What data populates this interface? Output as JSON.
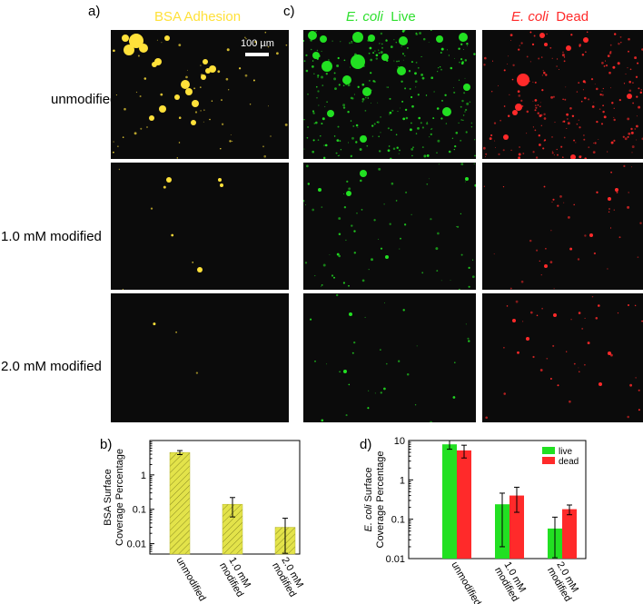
{
  "panel_labels": {
    "a": "a)",
    "b": "b)",
    "c": "c)",
    "d": "d)"
  },
  "micrograph_titles": {
    "bsa": "BSA Adhesion",
    "live_italic": "E. coli",
    "live_word": "Live",
    "dead_italic": "E. coli",
    "dead_word": "Dead"
  },
  "row_labels": [
    "unmodified",
    "1.0 mM modified",
    "2.0 mM modified"
  ],
  "scale_bar_label": "100 µm",
  "colors": {
    "bsa": "#ffe13a",
    "bsa_bar": "#e3e34a",
    "live": "#22e022",
    "dead": "#ff2a2a",
    "background": "#0b0b0b"
  },
  "chart_data": [
    {
      "id": "b",
      "type": "bar",
      "categories": [
        "unmodified",
        "1.0 mM\nmodified",
        "2.0 mM\nmodified"
      ],
      "series": [
        {
          "values": [
            4.5,
            0.14,
            0.03
          ],
          "error": [
            0.6,
            0.08,
            0.025
          ]
        }
      ],
      "ylabel": "BSA Surface\nCoverage Percentage",
      "yscale": "log",
      "ylim": [
        0.005,
        10
      ],
      "yticks": [
        0.01,
        0.1,
        1
      ],
      "ytick_labels": [
        "0.01",
        "0.1",
        "1"
      ]
    },
    {
      "id": "d",
      "type": "bar",
      "categories": [
        "unmodified",
        "1.0 mM\nmodified",
        "2.0 mM\nmodified"
      ],
      "series": [
        {
          "name": "live",
          "values": [
            8,
            0.24,
            0.058
          ],
          "error": [
            2,
            0.22,
            0.055
          ]
        },
        {
          "name": "dead",
          "values": [
            5.6,
            0.4,
            0.18
          ],
          "error": [
            2,
            0.25,
            0.05
          ]
        }
      ],
      "ylabel_italic": "E. coli",
      "ylabel_rest": " Surface",
      "ylabel_line2": "Coverage Percentage",
      "yscale": "log",
      "ylim": [
        0.01,
        10
      ],
      "yticks": [
        0.01,
        0.1,
        1,
        10
      ],
      "ytick_labels": [
        "0.01",
        "0.1",
        "1",
        "10"
      ],
      "legend_position": "top-right"
    }
  ]
}
